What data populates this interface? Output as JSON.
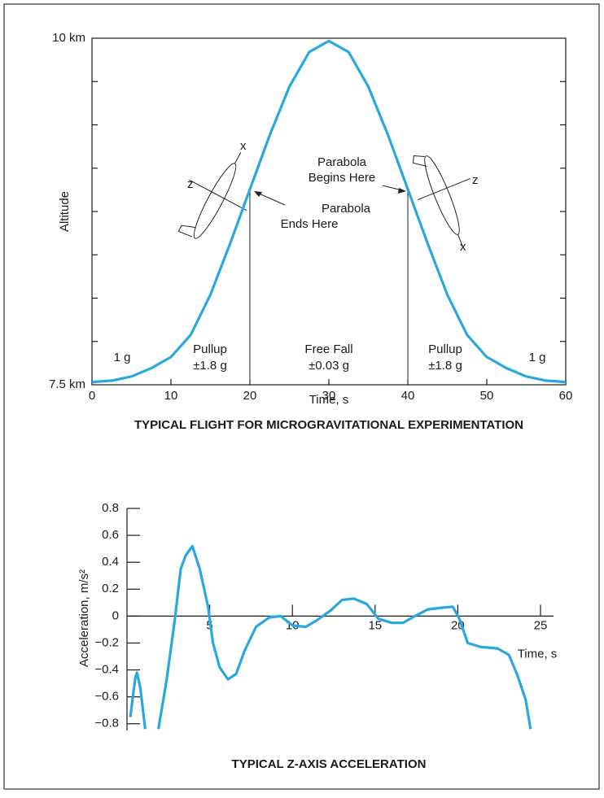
{
  "chart_data": [
    {
      "type": "line",
      "title": "TYPICAL FLIGHT FOR MICROGRAVITATIONAL EXPERIMENTATION",
      "x_label": "Time, s",
      "y_label": "Altitude",
      "x": [
        0,
        2.5,
        5,
        7.5,
        10,
        12.5,
        15,
        17.5,
        20,
        22.5,
        25,
        27.5,
        30,
        32.5,
        35,
        37.5,
        40,
        42.5,
        45,
        47.5,
        50,
        52.5,
        55,
        57.5,
        60
      ],
      "series": [
        {
          "color": "#29a8e0",
          "values": [
            7.52,
            7.53,
            7.56,
            7.62,
            7.7,
            7.86,
            8.15,
            8.52,
            8.91,
            9.3,
            9.65,
            9.9,
            9.98,
            9.9,
            9.65,
            9.3,
            8.91,
            8.52,
            8.15,
            7.86,
            7.7,
            7.62,
            7.56,
            7.53,
            7.52
          ]
        }
      ],
      "xlim": [
        0,
        60
      ],
      "xticks": [
        0,
        10,
        20,
        30,
        40,
        50,
        60
      ],
      "ylim": [
        7.5,
        10
      ],
      "yticks": [
        {
          "value": 7.5,
          "label": "7.5 km"
        },
        {
          "value": 10,
          "label": "10 km"
        }
      ],
      "minor_yticks": [
        7.8125,
        8.125,
        8.4375,
        8.75,
        9.0625,
        9.375,
        9.6875
      ],
      "phase_boundaries": [
        20,
        40
      ],
      "annotations": [
        "1 g",
        "Pullup",
        "±1.8 g",
        "Free Fall",
        "±0.03 g",
        "Pullup",
        "±1.8 g",
        "1 g",
        "Parabola",
        "Begins Here",
        "Parabola",
        "Ends Here"
      ]
    },
    {
      "type": "line",
      "title": "TYPICAL Z-AXIS ACCELERATION",
      "x_label": "Time, s",
      "y_label": "Acceleration, m/s²",
      "x": [
        0.2,
        0.5,
        0.6,
        0.8,
        1.1,
        null,
        1.9,
        2.4,
        2.9,
        3.25,
        3.55,
        3.95,
        4.4,
        4.9,
        5.2,
        5.6,
        6.1,
        6.6,
        7.1,
        7.8,
        8.6,
        9.3,
        10,
        10.8,
        11.5,
        12.3,
        13,
        13.7,
        14.5,
        15.2,
        16,
        16.7,
        17.4,
        18.2,
        18.9,
        19.7,
        20.1,
        20.6,
        21.4,
        22.4,
        23.1,
        23.6,
        24.1,
        24.4
      ],
      "series": [
        {
          "color": "#29a8e0",
          "values": [
            -0.75,
            -0.46,
            -0.42,
            -0.53,
            -0.84,
            null,
            -0.84,
            -0.47,
            -0.02,
            0.35,
            0.45,
            0.52,
            0.35,
            0.07,
            -0.2,
            -0.38,
            -0.47,
            -0.43,
            -0.26,
            -0.08,
            -0.01,
            0,
            -0.07,
            -0.08,
            -0.03,
            0.04,
            0.12,
            0.13,
            0.09,
            -0.02,
            -0.05,
            -0.05,
            0,
            0.05,
            0.06,
            0.07,
            -0.02,
            -0.2,
            -0.23,
            -0.24,
            -0.29,
            -0.44,
            -0.62,
            -0.84
          ]
        }
      ],
      "xlim": [
        0,
        25
      ],
      "xticks": [
        5,
        10,
        15,
        20,
        25
      ],
      "ylim": [
        -0.85,
        0.8
      ],
      "yticks": [
        {
          "value": -0.8,
          "label": "−0.8"
        },
        {
          "value": -0.6,
          "label": "−0.6"
        },
        {
          "value": -0.4,
          "label": "−0.4"
        },
        {
          "value": -0.2,
          "label": "−0.2"
        },
        0,
        0.2,
        0.4,
        0.6,
        0.8
      ]
    }
  ]
}
